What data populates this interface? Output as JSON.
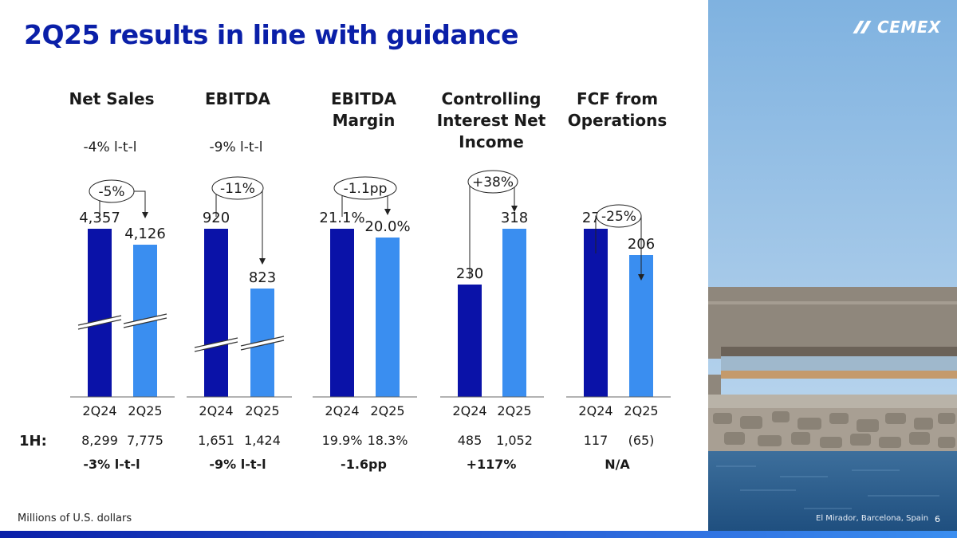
{
  "title": "2Q25 results in line with guidance",
  "footnote": "Millions of U.S. dollars",
  "brand": {
    "logo_text": "CEMEX",
    "dark": "#0a12a8",
    "light": "#3a8ef0"
  },
  "photo": {
    "caption": "El Mirador, Barcelona, Spain"
  },
  "page_number": "6",
  "h1_label": "1H:",
  "chart_data": [
    {
      "type": "bar",
      "title_lines": [
        "Net Sales"
      ],
      "subtitle": "-4% l-t-l",
      "categories": [
        "2Q24",
        "2Q25"
      ],
      "values": [
        4357,
        4126
      ],
      "labels": [
        "4,357",
        "4,126"
      ],
      "change": "-5%",
      "axis_break": true,
      "h1": {
        "values": [
          "8,299",
          "7,775"
        ],
        "change": "-3% l-t-l"
      }
    },
    {
      "type": "bar",
      "title_lines": [
        "EBITDA"
      ],
      "subtitle": "-9% l-t-l",
      "categories": [
        "2Q24",
        "2Q25"
      ],
      "values": [
        920,
        823
      ],
      "labels": [
        "920",
        "823"
      ],
      "change": "-11%",
      "axis_break": true,
      "h1": {
        "values": [
          "1,651",
          "1,424"
        ],
        "change": "-9% l-t-l"
      }
    },
    {
      "type": "bar",
      "title_lines": [
        "EBITDA",
        "Margin"
      ],
      "subtitle": "",
      "categories": [
        "2Q24",
        "2Q25"
      ],
      "values": [
        21.1,
        20.0
      ],
      "labels": [
        "21.1%",
        "20.0%"
      ],
      "change": "-1.1pp",
      "axis_break": false,
      "h1": {
        "values": [
          "19.9%",
          "18.3%"
        ],
        "change": "-1.6pp"
      }
    },
    {
      "type": "bar",
      "title_lines": [
        "Controlling",
        "Interest Net",
        "Income"
      ],
      "subtitle": "",
      "categories": [
        "2Q24",
        "2Q25"
      ],
      "values": [
        230,
        318
      ],
      "labels": [
        "230",
        "318"
      ],
      "change": "+38%",
      "axis_break": false,
      "h1": {
        "values": [
          "485",
          "1,052"
        ],
        "change": "+117%"
      }
    },
    {
      "type": "bar",
      "title_lines": [
        "FCF from",
        "Operations"
      ],
      "subtitle": "",
      "categories": [
        "2Q24",
        "2Q25"
      ],
      "values": [
        276,
        206
      ],
      "labels": [
        "276",
        "206"
      ],
      "change": "-25%",
      "axis_break": false,
      "h1": {
        "values": [
          "117",
          "(65)"
        ],
        "change": "N/A"
      }
    }
  ]
}
